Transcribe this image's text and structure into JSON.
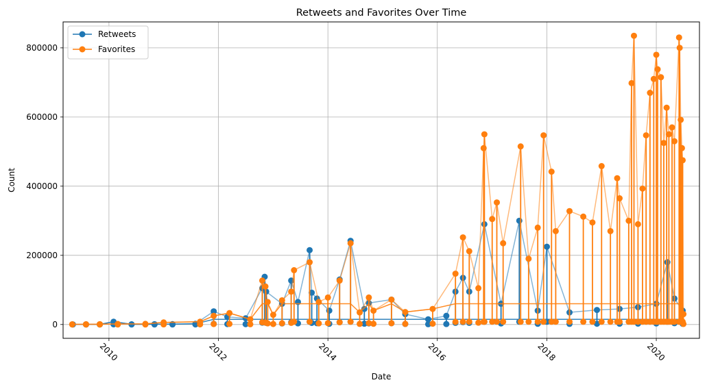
{
  "chart_data": {
    "type": "line",
    "title": "Retweets and Favorites Over Time",
    "xlabel": "Date",
    "ylabel": "Count",
    "xlim": [
      "2009-03-01",
      "2020-10-15"
    ],
    "ylim": [
      -40000,
      875000
    ],
    "x_ticks": [
      "2010",
      "2012",
      "2014",
      "2016",
      "2018",
      "2020"
    ],
    "x_tick_dates": [
      "2010-01-01",
      "2012-01-01",
      "2014-01-01",
      "2016-01-01",
      "2018-01-01",
      "2020-01-01"
    ],
    "y_ticks": [
      0,
      200000,
      400000,
      600000,
      800000
    ],
    "y_tick_labels": [
      "0",
      "200000",
      "400000",
      "600000",
      "800000"
    ],
    "grid": true,
    "legend_position": "top-left",
    "series": [
      {
        "name": "Retweets",
        "color": "#1f77b4",
        "marker": "circle",
        "points": [
          [
            "2009-05-05",
            200
          ],
          [
            "2009-08-01",
            300
          ],
          [
            "2009-11-01",
            400
          ],
          [
            "2010-02-01",
            8000
          ],
          [
            "2010-06-01",
            600
          ],
          [
            "2010-11-01",
            900
          ],
          [
            "2011-03-01",
            1000
          ],
          [
            "2011-08-01",
            2000
          ],
          [
            "2011-12-01",
            38000
          ],
          [
            "2012-03-01",
            22000
          ],
          [
            "2012-07-01",
            18000
          ],
          [
            "2012-10-20",
            105000
          ],
          [
            "2012-11-05",
            138000
          ],
          [
            "2012-11-15",
            95000
          ],
          [
            "2013-03-01",
            60000
          ],
          [
            "2013-05-01",
            127000
          ],
          [
            "2013-06-15",
            65000
          ],
          [
            "2013-09-01",
            215000
          ],
          [
            "2013-09-15",
            92000
          ],
          [
            "2013-10-20",
            75000
          ],
          [
            "2014-01-10",
            40000
          ],
          [
            "2014-03-20",
            130000
          ],
          [
            "2014-06-01",
            242000
          ],
          [
            "2014-09-01",
            45000
          ],
          [
            "2014-10-01",
            62000
          ],
          [
            "2015-03-01",
            72000
          ],
          [
            "2015-06-01",
            30000
          ],
          [
            "2015-11-01",
            15000
          ],
          [
            "2016-03-01",
            25000
          ],
          [
            "2016-05-01",
            95000
          ],
          [
            "2016-06-20",
            135000
          ],
          [
            "2016-08-01",
            95000
          ],
          [
            "2016-11-10",
            290000
          ],
          [
            "2017-03-01",
            60000
          ],
          [
            "2017-07-01",
            300000
          ],
          [
            "2017-11-01",
            40000
          ],
          [
            "2018-01-01",
            225000
          ],
          [
            "2018-06-01",
            35000
          ],
          [
            "2018-12-01",
            42000
          ],
          [
            "2019-05-01",
            45000
          ],
          [
            "2019-09-01",
            50000
          ],
          [
            "2020-01-01",
            60000
          ],
          [
            "2020-03-15",
            180000
          ],
          [
            "2020-05-01",
            75000
          ],
          [
            "2020-06-25",
            40000
          ]
        ]
      },
      {
        "name": "Favorites",
        "color": "#ff7f0e",
        "marker": "circle",
        "points": [
          [
            "2009-05-01",
            500
          ],
          [
            "2009-08-01",
            700
          ],
          [
            "2009-11-01",
            900
          ],
          [
            "2010-03-01",
            1500
          ],
          [
            "2010-09-01",
            1800
          ],
          [
            "2011-01-01",
            6000
          ],
          [
            "2011-09-01",
            8000
          ],
          [
            "2011-12-01",
            25000
          ],
          [
            "2012-03-15",
            33000
          ],
          [
            "2012-08-01",
            15000
          ],
          [
            "2012-10-20",
            127000
          ],
          [
            "2012-11-10",
            110000
          ],
          [
            "2012-11-25",
            65000
          ],
          [
            "2013-01-01",
            28000
          ],
          [
            "2013-03-01",
            70000
          ],
          [
            "2013-05-01",
            95000
          ],
          [
            "2013-05-20",
            157000
          ],
          [
            "2013-09-01",
            180000
          ],
          [
            "2013-11-01",
            65000
          ],
          [
            "2014-01-01",
            78000
          ],
          [
            "2014-03-20",
            127000
          ],
          [
            "2014-06-01",
            235000
          ],
          [
            "2014-08-01",
            35000
          ],
          [
            "2014-10-01",
            78000
          ],
          [
            "2014-11-01",
            40000
          ],
          [
            "2015-03-01",
            72000
          ],
          [
            "2015-06-01",
            36000
          ],
          [
            "2015-12-01",
            45000
          ],
          [
            "2016-05-01",
            147000
          ],
          [
            "2016-06-20",
            252000
          ],
          [
            "2016-08-01",
            212000
          ],
          [
            "2016-10-01",
            105000
          ],
          [
            "2016-11-10",
            550000
          ],
          [
            "2016-11-05",
            510000
          ],
          [
            "2017-01-01",
            305000
          ],
          [
            "2017-02-01",
            353000
          ],
          [
            "2017-03-15",
            235000
          ],
          [
            "2017-07-10",
            515000
          ],
          [
            "2017-09-01",
            190000
          ],
          [
            "2017-11-01",
            280000
          ],
          [
            "2017-12-10",
            547000
          ],
          [
            "2018-02-01",
            442000
          ],
          [
            "2018-03-01",
            270000
          ],
          [
            "2018-06-01",
            328000
          ],
          [
            "2018-09-01",
            312000
          ],
          [
            "2018-11-01",
            295000
          ],
          [
            "2019-01-01",
            458000
          ],
          [
            "2019-03-01",
            270000
          ],
          [
            "2019-04-15",
            423000
          ],
          [
            "2019-05-01",
            365000
          ],
          [
            "2019-07-01",
            300000
          ],
          [
            "2019-07-20",
            698000
          ],
          [
            "2019-08-05",
            835000
          ],
          [
            "2019-09-01",
            290000
          ],
          [
            "2019-10-01",
            393000
          ],
          [
            "2019-10-25",
            547000
          ],
          [
            "2019-11-20",
            670000
          ],
          [
            "2019-12-15",
            710000
          ],
          [
            "2020-01-01",
            780000
          ],
          [
            "2020-01-10",
            738000
          ],
          [
            "2020-02-01",
            715000
          ],
          [
            "2020-02-20",
            525000
          ],
          [
            "2020-03-10",
            627000
          ],
          [
            "2020-03-25",
            550000
          ],
          [
            "2020-04-15",
            570000
          ],
          [
            "2020-05-01",
            530000
          ],
          [
            "2020-06-01",
            830000
          ],
          [
            "2020-06-05",
            800000
          ],
          [
            "2020-06-12",
            592000
          ],
          [
            "2020-06-20",
            510000
          ],
          [
            "2020-06-25",
            475000
          ],
          [
            "2020-06-30",
            30000
          ]
        ]
      }
    ]
  }
}
